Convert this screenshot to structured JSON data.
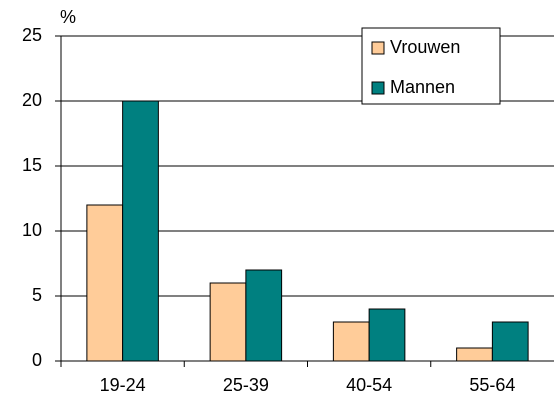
{
  "chart_data": {
    "type": "bar",
    "ylabel": "%",
    "categories": [
      "19-24",
      "25-39",
      "40-54",
      "55-64"
    ],
    "series": [
      {
        "name": "Vrouwen",
        "color": "#ffcc99",
        "values": [
          12,
          6,
          3,
          1
        ]
      },
      {
        "name": "Mannen",
        "color": "#008080",
        "values": [
          20,
          7,
          4,
          3
        ]
      }
    ],
    "ylim": [
      0,
      25
    ],
    "yticks": [
      0,
      5,
      10,
      15,
      20,
      25
    ],
    "grid": true,
    "legend": "upper right"
  }
}
